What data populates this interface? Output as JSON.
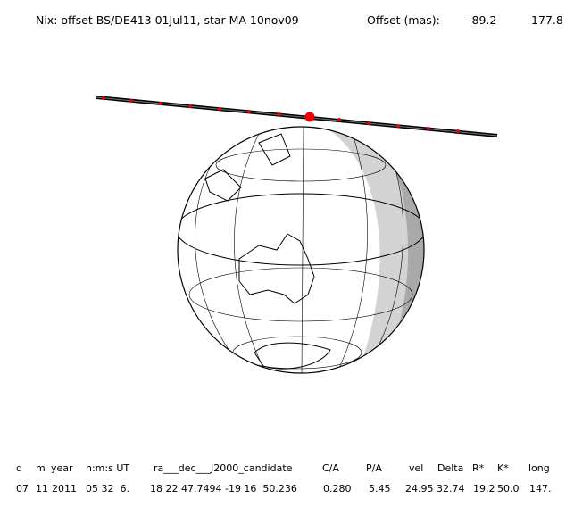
{
  "header": {
    "title": "Nix: offset BS/DE413 01Jul11, star MA 10nov09",
    "offset_label": "Offset (mas):",
    "offset_values": [
      "-89.2",
      "177.8"
    ]
  },
  "table": {
    "headers": [
      "d",
      "m",
      "year",
      "h:m:s UT",
      "ra___dec___J2000_candidate",
      "C/A",
      "P/A",
      "vel",
      "Delta",
      "R*",
      "K*",
      "long"
    ],
    "values": [
      "07",
      "11",
      "2011",
      "05 32  6.",
      "18 22 47.7494 -19 16  50.236",
      "0.280",
      "5.45",
      "24.95",
      "32.74",
      "19.2",
      "50.0",
      "147."
    ]
  }
}
